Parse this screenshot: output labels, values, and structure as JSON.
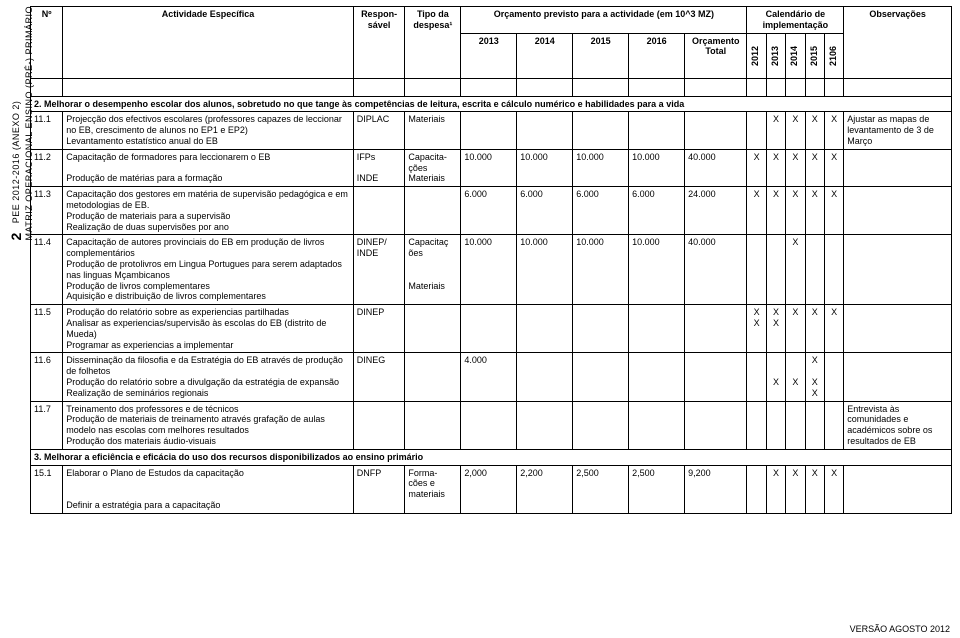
{
  "sidebar": {
    "page_number": "2",
    "line1": "PEE 2012-2016 (ANEXO 2)",
    "line2": "MATRIZ OPERACIONAL ENSINO (PRÉ-) PRIMÁRIO"
  },
  "header": {
    "num": "Nº",
    "activity": "Actividade Específica",
    "responsavel": "Respon-sável",
    "tipo": "Tipo da despesa¹",
    "budget_title": "Orçamento previsto para a actividade (em 10^3 MZ)",
    "y2013": "2013",
    "y2014": "2014",
    "y2015": "2015",
    "y2016": "2016",
    "orc_total": "Orçamento Total",
    "calendar": "Calendário de implementação",
    "c2012": "2012",
    "c2013": "2013",
    "c2014": "2014",
    "c2015": "2015",
    "c2106": "2106",
    "obs": "Observações"
  },
  "section2": "2. Melhorar o desempenho escolar dos alunos, sobretudo no que tange às competências de leitura, escrita e cálculo numérico e habilidades para a vida",
  "section3": "3. Melhorar a eficiência e eficácia do uso dos recursos disponibilizados ao ensino primário",
  "rows": [
    {
      "n": "11.1",
      "act": "Projecção dos efectivos escolares (professores capazes de leccionar no EB, crescimento de alunos no EP1 e EP2)\nLevantamento estatístico anual do EB",
      "resp": "DIPLAC",
      "tipo": "Materiais",
      "v": [
        "",
        "",
        "",
        "",
        ""
      ],
      "cal": [
        "",
        "X",
        "X",
        "X",
        "X"
      ],
      "obs": "Ajustar as mapas de levantamento de 3 de Março"
    },
    {
      "n": "11.2",
      "act": "Capacitação de formadores para leccionarem o EB\n\nProdução de matérias para a formação",
      "resp": "IFPs\n\nINDE",
      "tipo": "Capacita-ções\nMateriais",
      "v": [
        "10.000",
        "10.000",
        "10.000",
        "10.000",
        "40.000"
      ],
      "cal": [
        "X",
        "X",
        "X",
        "X",
        "X"
      ],
      "obs": ""
    },
    {
      "n": "11.3",
      "act": "Capacitação dos gestores em matéria de supervisão pedagógica e em metodologias de EB.\nProdução de materiais para a supervisão\nRealização de duas supervisões por ano",
      "resp": "",
      "tipo": "",
      "v": [
        "6.000",
        "6.000",
        "6.000",
        "6.000",
        "24.000"
      ],
      "cal": [
        "X",
        "X",
        "X",
        "X",
        "X"
      ],
      "obs": ""
    },
    {
      "n": "11.4",
      "act": "Capacitação de autores provinciais do EB em produção de livros complementários\nProdução de protolivros em Lingua Portugues para serem adaptados nas linguas Mçambicanos\nProdução de livros complementares\nAquisição e distribuição de livros complementares",
      "resp": "DINEP/\nINDE",
      "tipo": "Capacitaç\nões\n\n\nMateriais",
      "v": [
        "10.000",
        "10.000",
        "10.000",
        "10.000",
        "40.000"
      ],
      "cal": [
        "",
        "",
        "X",
        "",
        ""
      ],
      "obs": ""
    },
    {
      "n": "11.5",
      "act": "Produção do relatório sobre as experiencias partilhadas\nAnalisar as experiencias/supervisão às escolas do EB (distrito de Mueda)\nProgramar as experiencias a implementar",
      "resp": "DINEP",
      "tipo": "",
      "v": [
        "",
        "",
        "",
        "",
        ""
      ],
      "cal": [
        "X\nX",
        "X\nX",
        "X",
        "X",
        "X"
      ],
      "obs": ""
    },
    {
      "n": "11.6",
      "act": "Disseminação da filosofia e da Estratégia do EB através de produção de folhetos\nProdução do relatório sobre a divulgação da estratégia de expansão\nRealização de seminários regionais",
      "resp": "DINEG",
      "tipo": "",
      "v": [
        "4.000",
        "",
        "",
        "",
        ""
      ],
      "cal": [
        "",
        "\n\nX",
        "\n\nX",
        "X\n\nX\nX",
        ""
      ],
      "obs": ""
    },
    {
      "n": "11.7",
      "act": "Treinamento dos professores e  de técnicos\nProdução de materiais de treinamento através grafação de aulas modelo nas escolas com melhores resultados\nProdução dos materiais áudio-visuais",
      "resp": "",
      "tipo": "",
      "v": [
        "",
        "",
        "",
        "",
        ""
      ],
      "cal": [
        "",
        "",
        "",
        "",
        ""
      ],
      "obs": "Entrevista às comunidades e académicos sobre os resultados de EB"
    }
  ],
  "row15": {
    "n": "15.1",
    "act": "Elaborar o Plano de Estudos da capacitação\n\n\nDefinir a estratégia para a capacitação",
    "resp": "DNFP",
    "tipo": "Forma-\ncões e\nmateriais",
    "v": [
      "2,000",
      "2,200",
      "2,500",
      "2,500",
      "9,200"
    ],
    "cal": [
      "",
      "X",
      "X",
      "X",
      "X"
    ],
    "obs": ""
  },
  "footer": "VERSÃO AGOSTO 2012"
}
